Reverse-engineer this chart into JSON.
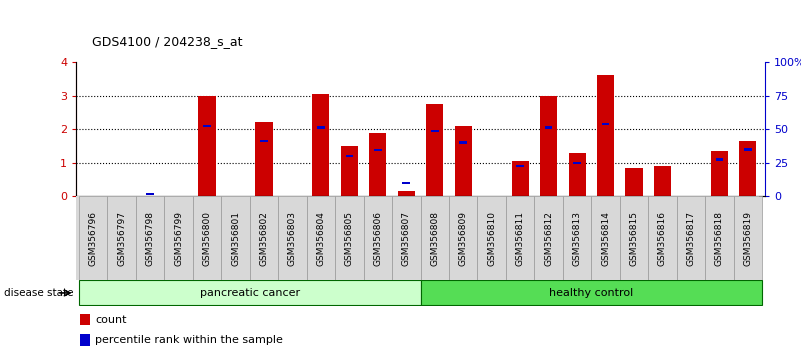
{
  "title": "GDS4100 / 204238_s_at",
  "samples": [
    "GSM356796",
    "GSM356797",
    "GSM356798",
    "GSM356799",
    "GSM356800",
    "GSM356801",
    "GSM356802",
    "GSM356803",
    "GSM356804",
    "GSM356805",
    "GSM356806",
    "GSM356807",
    "GSM356808",
    "GSM356809",
    "GSM356810",
    "GSM356811",
    "GSM356812",
    "GSM356813",
    "GSM356814",
    "GSM356815",
    "GSM356816",
    "GSM356817",
    "GSM356818",
    "GSM356819"
  ],
  "count_values": [
    0.0,
    0.0,
    0.0,
    0.0,
    3.0,
    0.0,
    2.2,
    0.0,
    3.05,
    1.5,
    1.9,
    0.15,
    2.75,
    2.1,
    0.0,
    1.05,
    3.0,
    1.3,
    3.6,
    0.85,
    0.9,
    0.0,
    1.35,
    1.65
  ],
  "percentile_values": [
    0.0,
    0.0,
    0.08,
    0.0,
    2.1,
    0.0,
    1.65,
    0.0,
    2.05,
    1.2,
    1.38,
    0.4,
    1.95,
    1.6,
    0.0,
    0.9,
    2.05,
    1.0,
    2.15,
    0.0,
    0.0,
    0.0,
    1.1,
    1.4
  ],
  "bar_color": "#cc0000",
  "percentile_color": "#0000cc",
  "ylim_left": [
    0,
    4
  ],
  "ylim_right": [
    0,
    100
  ],
  "yticks_left": [
    0,
    1,
    2,
    3,
    4
  ],
  "yticks_right": [
    0,
    25,
    50,
    75,
    100
  ],
  "ytick_labels_right": [
    "0",
    "25",
    "50",
    "75",
    "100%"
  ],
  "group1_label": "pancreatic cancer",
  "group2_label": "healthy control",
  "group1_color": "#ccffcc",
  "group2_color": "#55dd55",
  "disease_state_label": "disease state",
  "legend_count_label": "count",
  "legend_percentile_label": "percentile rank within the sample",
  "bar_width": 0.6,
  "n_pancreatic": 12,
  "n_healthy": 12
}
